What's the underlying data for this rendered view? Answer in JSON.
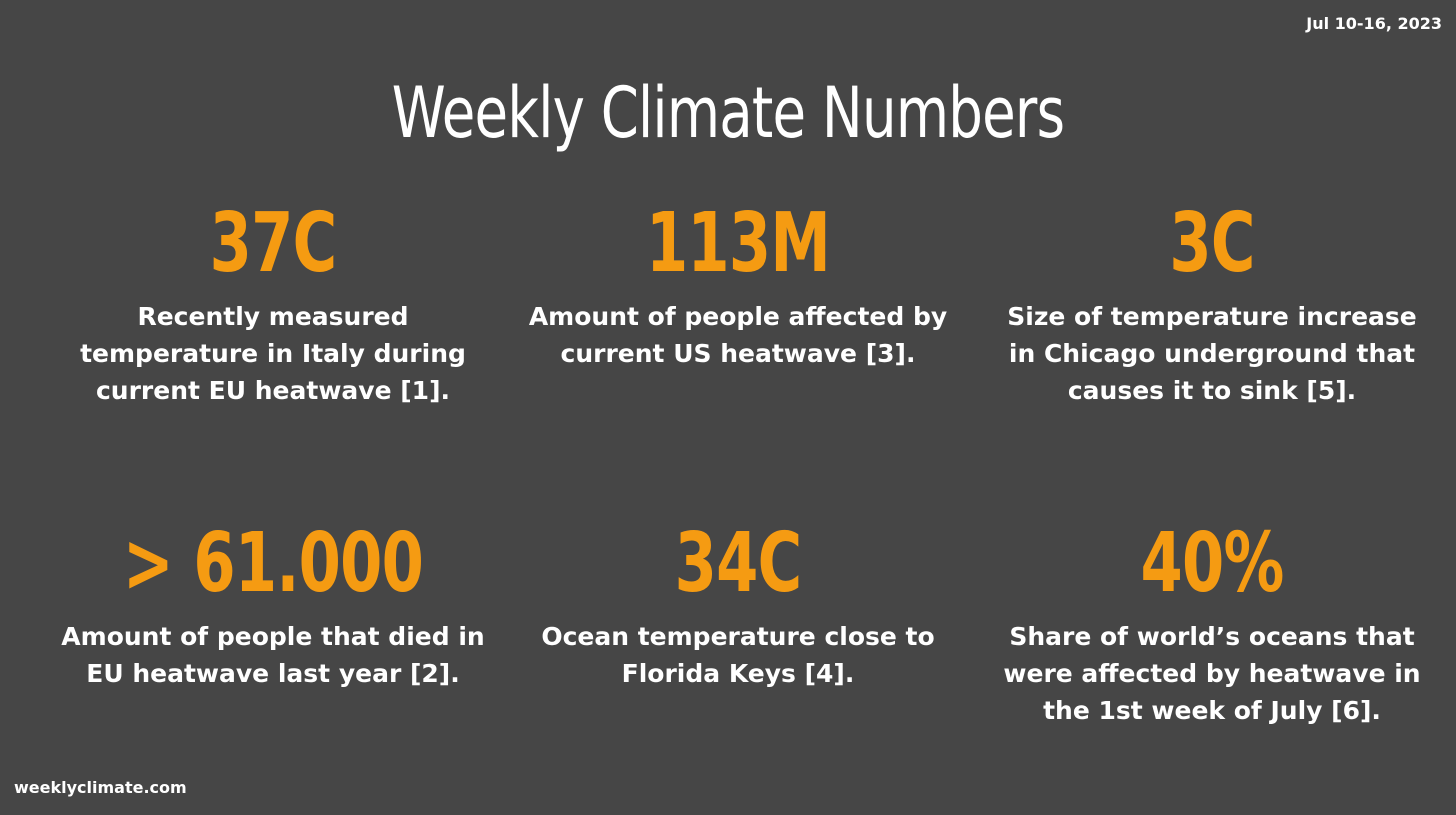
{
  "header": {
    "date": "Jul 10-16, 2023",
    "title": "Weekly Climate Numbers"
  },
  "stats": [
    {
      "value": "37C",
      "description": "Recently measured temperature in Italy during current EU heatwave [1]."
    },
    {
      "value": "113M",
      "description": "Amount of people affected by current US heatwave [3]."
    },
    {
      "value": "3C",
      "description": "Size of temperature increase in Chicago underground that causes it to sink [5]."
    },
    {
      "value": "> 61.000",
      "description": "Amount of people that died in EU heatwave last year [2]."
    },
    {
      "value": "34C",
      "description": "Ocean temperature close to Florida Keys [4]."
    },
    {
      "value": "40%",
      "description": "Share of world’s oceans that were affected by heatwave in the 1st week of July [6]."
    }
  ],
  "footer": {
    "site": "weeklyclimate.com"
  },
  "colors": {
    "background": "#464646",
    "accent": "#f59b12",
    "text": "#ffffff"
  }
}
